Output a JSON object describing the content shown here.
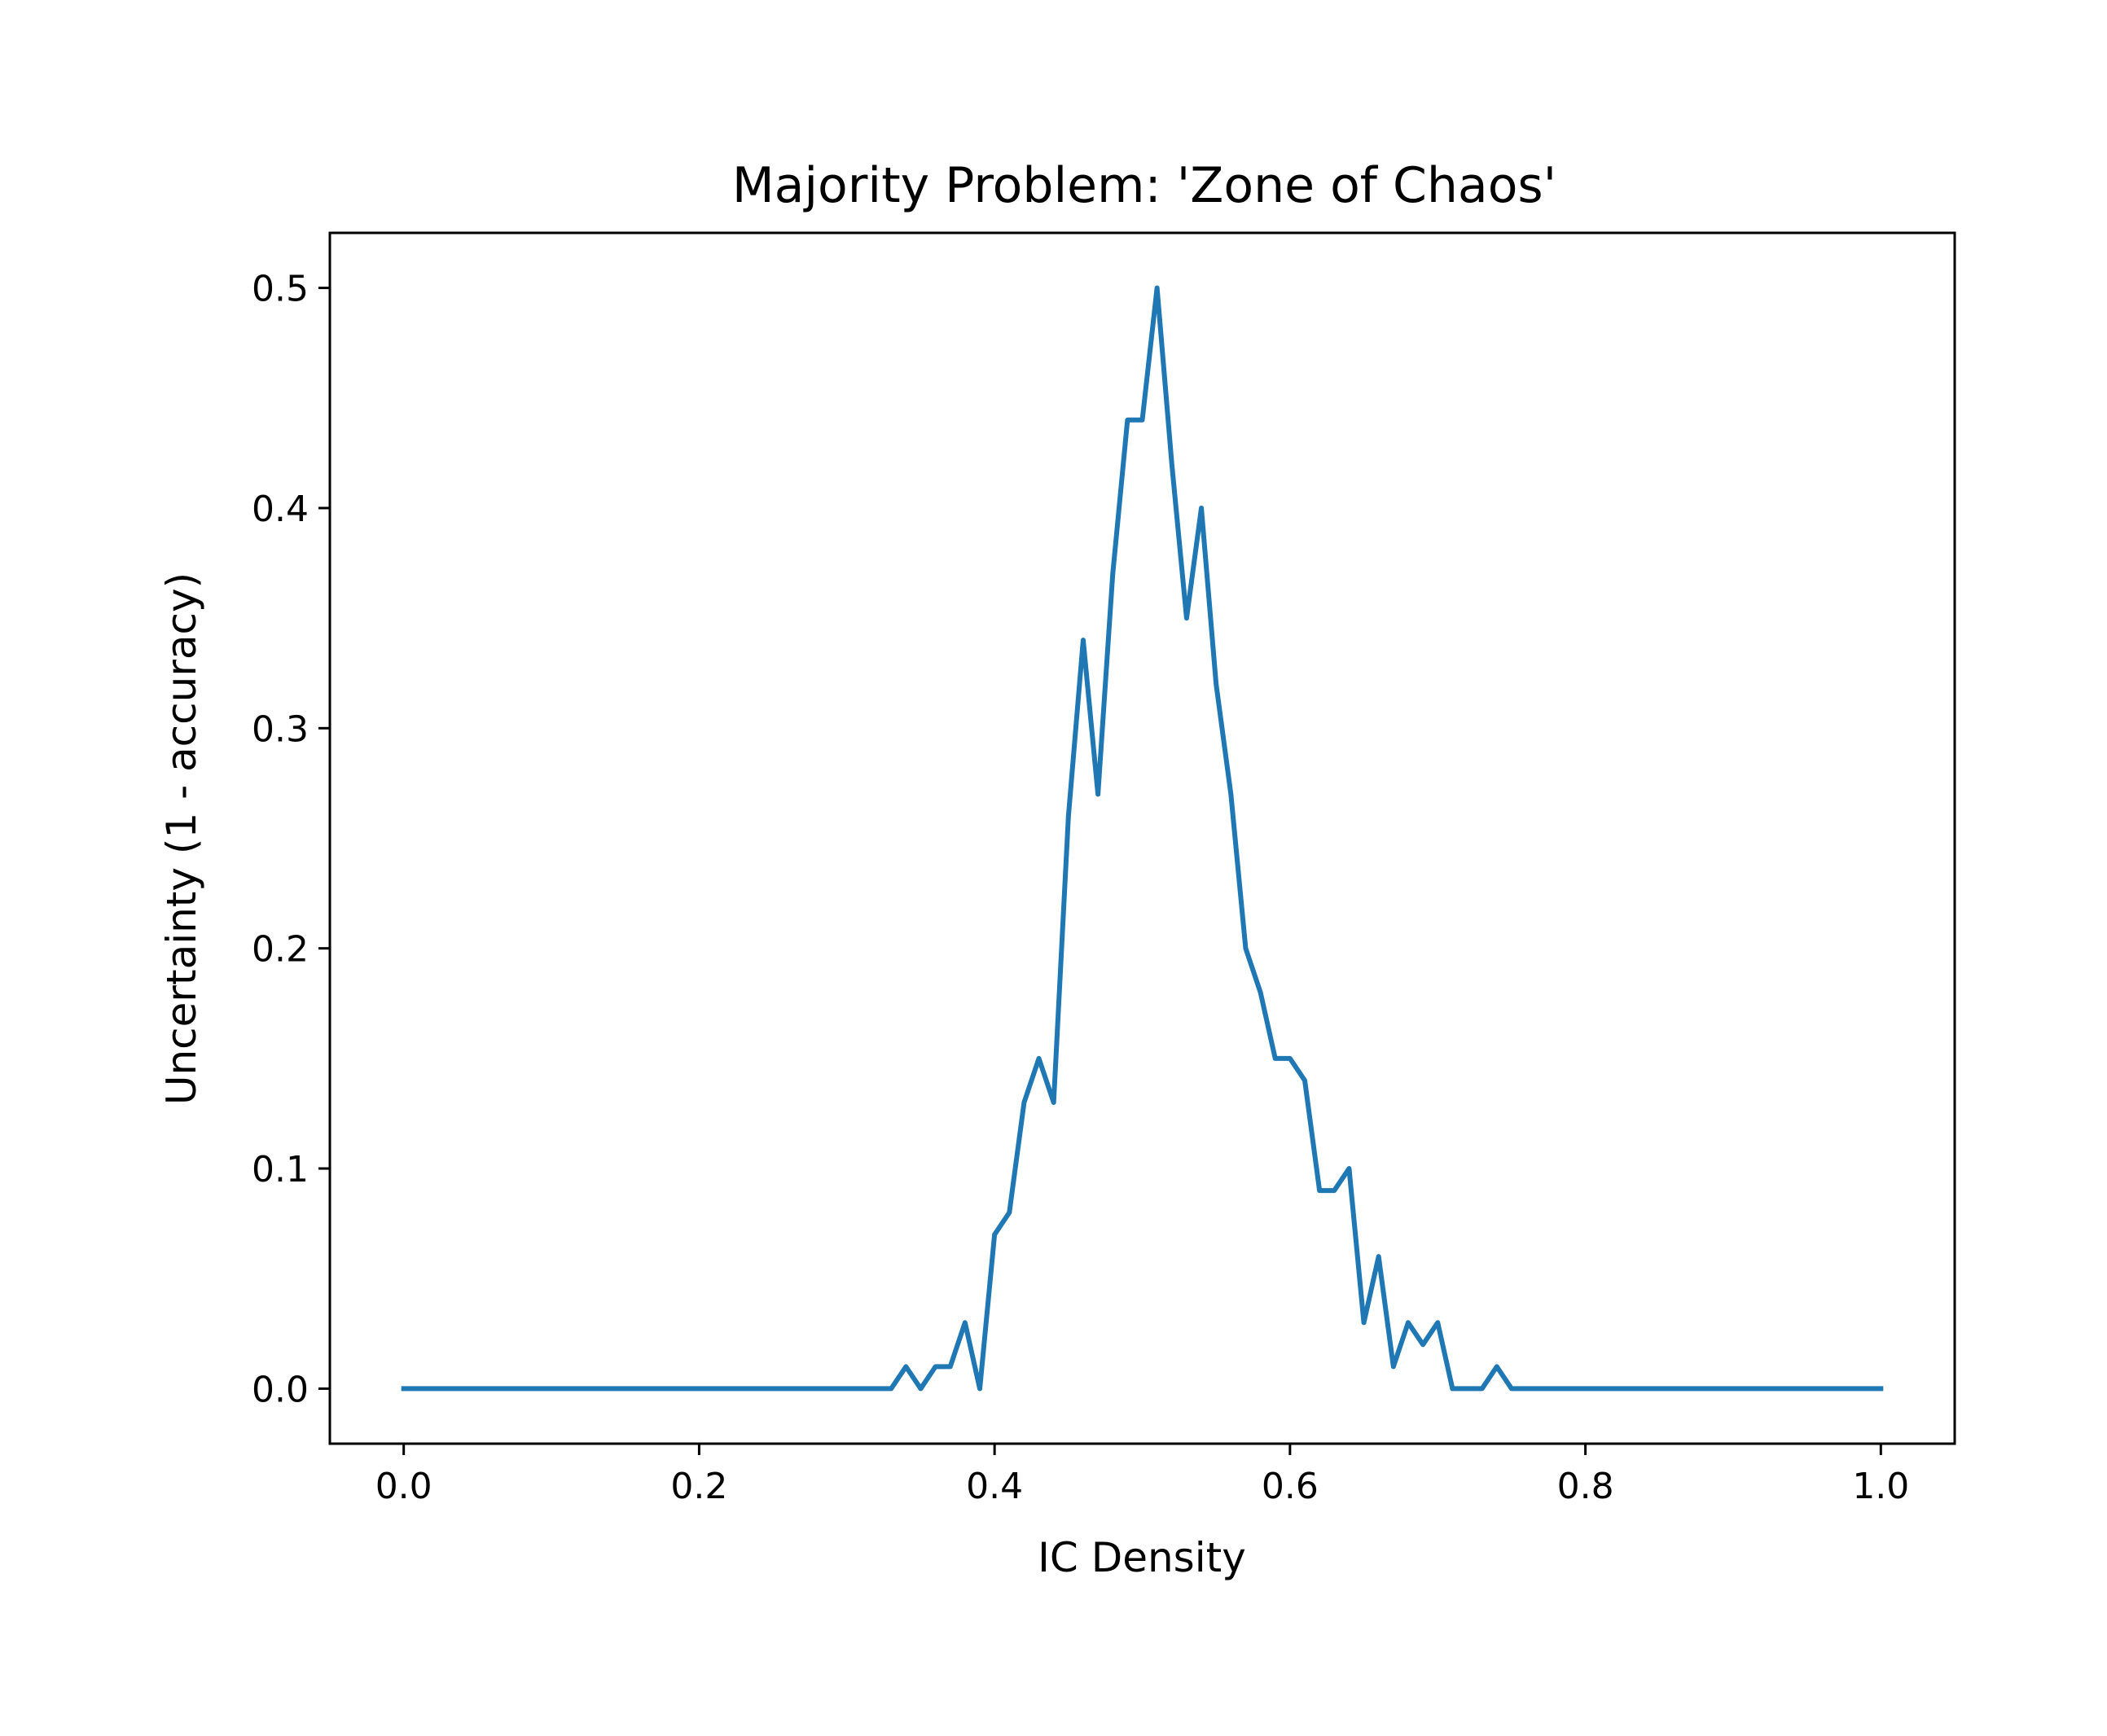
{
  "chart_data": {
    "type": "line",
    "title": "Majority Problem: 'Zone of Chaos'",
    "xlabel": "IC Density",
    "ylabel": "Uncertainty (1 - accuracy)",
    "xlim": [
      -0.05,
      1.05
    ],
    "ylim": [
      -0.025,
      0.525
    ],
    "xticks": [
      "0.0",
      "0.2",
      "0.4",
      "0.6",
      "0.8",
      "1.0"
    ],
    "yticks": [
      "0.0",
      "0.1",
      "0.2",
      "0.3",
      "0.4",
      "0.5"
    ],
    "grid": false,
    "series": [
      {
        "color": "#1f77b4",
        "x": [
          0.0,
          0.01,
          0.02,
          0.03,
          0.04,
          0.05,
          0.06,
          0.07,
          0.08,
          0.09,
          0.1,
          0.11,
          0.12,
          0.13,
          0.14,
          0.15,
          0.16,
          0.17,
          0.18,
          0.19,
          0.2,
          0.21,
          0.22,
          0.23,
          0.24,
          0.25,
          0.26,
          0.27,
          0.28,
          0.29,
          0.3,
          0.31,
          0.32,
          0.33,
          0.34,
          0.35,
          0.36,
          0.37,
          0.38,
          0.39,
          0.4,
          0.41,
          0.42,
          0.43,
          0.44,
          0.45,
          0.46,
          0.47,
          0.48,
          0.49,
          0.5,
          0.51,
          0.52,
          0.53,
          0.54,
          0.55,
          0.56,
          0.57,
          0.58,
          0.59,
          0.6,
          0.61,
          0.62,
          0.63,
          0.64,
          0.65,
          0.66,
          0.67,
          0.68,
          0.69,
          0.7,
          0.71,
          0.72,
          0.73,
          0.74,
          0.75,
          0.76,
          0.77,
          0.78,
          0.79,
          0.8,
          0.81,
          0.82,
          0.83,
          0.84,
          0.85,
          0.86,
          0.87,
          0.88,
          0.89,
          0.9,
          0.91,
          0.92,
          0.93,
          0.94,
          0.95,
          0.96,
          0.97,
          0.98,
          0.99,
          1.0
        ],
        "y": [
          0,
          0,
          0,
          0,
          0,
          0,
          0,
          0,
          0,
          0,
          0,
          0,
          0,
          0,
          0,
          0,
          0,
          0,
          0,
          0,
          0,
          0,
          0,
          0,
          0,
          0,
          0,
          0,
          0,
          0,
          0,
          0,
          0,
          0,
          0.01,
          0,
          0.01,
          0.01,
          0.03,
          0,
          0.07,
          0.08,
          0.13,
          0.15,
          0.13,
          0.26,
          0.34,
          0.27,
          0.37,
          0.44,
          0.44,
          0.5,
          0.42,
          0.35,
          0.4,
          0.32,
          0.27,
          0.2,
          0.18,
          0.15,
          0.15,
          0.14,
          0.09,
          0.09,
          0.1,
          0.03,
          0.06,
          0.01,
          0.03,
          0.02,
          0.03,
          0,
          0,
          0,
          0.01,
          0,
          0,
          0,
          0,
          0,
          0,
          0,
          0,
          0,
          0,
          0,
          0,
          0,
          0,
          0,
          0,
          0,
          0,
          0,
          0,
          0,
          0,
          0,
          0,
          0,
          0
        ]
      }
    ]
  }
}
